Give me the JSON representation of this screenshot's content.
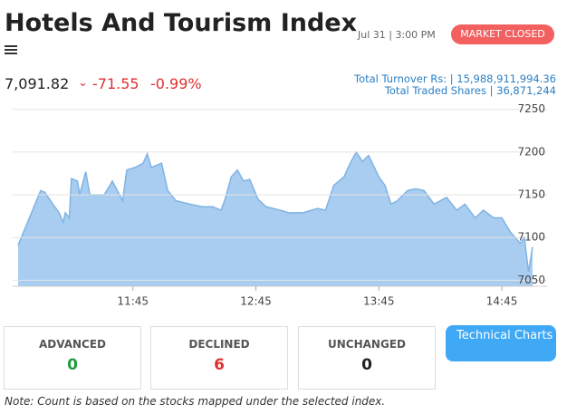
{
  "header": {
    "title": "Hotels And Tourism Index",
    "datetime": "Jul 31 | 3:00 PM",
    "status": "MARKET CLOSED",
    "price": "7,091.82",
    "change": "-71.55",
    "change_pct": "-0.99%",
    "turnover": "Total Turnover Rs: | 15,988,911,994.36",
    "traded_shares": "Total Traded Shares | 36,871,244"
  },
  "chart_data": {
    "type": "area",
    "color": "#7fb3e3",
    "fill": "#a8cdf0",
    "x": [
      649,
      660,
      662,
      666,
      669,
      671,
      672,
      674,
      675,
      678,
      679,
      682,
      684,
      691,
      695,
      700,
      702,
      706,
      710,
      712,
      714,
      719,
      722,
      726,
      733,
      739,
      744,
      748,
      750,
      753,
      756,
      759,
      762,
      766,
      770,
      777,
      781,
      788,
      795,
      799,
      803,
      808,
      811,
      814,
      817,
      820,
      825,
      828,
      831,
      834,
      839,
      843,
      847,
      852,
      858,
      863,
      867,
      872,
      876,
      881,
      885,
      889,
      894,
      896,
      898,
      900
    ],
    "values": [
      7091,
      7155,
      7153,
      7139,
      7129,
      7118,
      7129,
      7123,
      7169,
      7166,
      7150,
      7177,
      7150,
      7150,
      7166,
      7143,
      7179,
      7182,
      7187,
      7198,
      7182,
      7187,
      7155,
      7143,
      7139,
      7136,
      7136,
      7132,
      7145,
      7171,
      7179,
      7166,
      7168,
      7145,
      7136,
      7132,
      7129,
      7129,
      7134,
      7132,
      7161,
      7171,
      7187,
      7200,
      7189,
      7196,
      7171,
      7161,
      7139,
      7143,
      7155,
      7157,
      7155,
      7139,
      7147,
      7132,
      7139,
      7123,
      7132,
      7123,
      7123,
      7107,
      7093,
      7100,
      7060,
      7089
    ],
    "xlim": [
      649,
      900
    ],
    "xticks": [
      {
        "value": 705,
        "label": "11:45"
      },
      {
        "value": 765,
        "label": "12:45"
      },
      {
        "value": 825,
        "label": "13:45"
      },
      {
        "value": 885,
        "label": "14:45"
      }
    ],
    "ylim": [
      7043,
      7255
    ],
    "yticks": [
      7050,
      7100,
      7150,
      7200,
      7250
    ],
    "grid": true
  },
  "stats": [
    {
      "label": "ADVANCED",
      "count": 0
    },
    {
      "label": "DECLINED",
      "count": 6
    },
    {
      "label": "UNCHANGED",
      "count": 0
    }
  ],
  "button": "Technical Charts",
  "note": "Note: Count is based on the stocks mapped under the selected index."
}
